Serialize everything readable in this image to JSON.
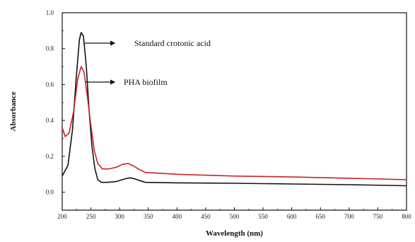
{
  "chart_data": {
    "type": "line",
    "xlabel": "Wavelength (nm)",
    "ylabel": "Absorbance",
    "xlim": [
      200,
      800
    ],
    "ylim": [
      -0.1,
      1.0
    ],
    "xticks": [
      "200",
      "250",
      "300",
      "350",
      "400",
      "450",
      "500",
      "550",
      "600",
      "650",
      "700",
      "750",
      "800"
    ],
    "yticks": [
      "0.0",
      "0.2",
      "0.4",
      "0.6",
      "0.8",
      "1.0"
    ],
    "grid": false,
    "legend": "none",
    "series": [
      {
        "name": "Standard crotonic acid",
        "color": "#111111",
        "points": [
          [
            200,
            0.09
          ],
          [
            210,
            0.15
          ],
          [
            218,
            0.35
          ],
          [
            224,
            0.62
          ],
          [
            230,
            0.85
          ],
          [
            233,
            0.89
          ],
          [
            237,
            0.87
          ],
          [
            242,
            0.7
          ],
          [
            247,
            0.45
          ],
          [
            252,
            0.25
          ],
          [
            257,
            0.13
          ],
          [
            262,
            0.07
          ],
          [
            268,
            0.055
          ],
          [
            280,
            0.055
          ],
          [
            295,
            0.06
          ],
          [
            310,
            0.075
          ],
          [
            318,
            0.08
          ],
          [
            326,
            0.075
          ],
          [
            335,
            0.065
          ],
          [
            345,
            0.055
          ],
          [
            400,
            0.052
          ],
          [
            500,
            0.05
          ],
          [
            600,
            0.046
          ],
          [
            700,
            0.042
          ],
          [
            800,
            0.036
          ]
        ]
      },
      {
        "name": "PHA biofilm",
        "color": "#cc2222",
        "points": [
          [
            200,
            0.36
          ],
          [
            205,
            0.31
          ],
          [
            212,
            0.33
          ],
          [
            220,
            0.45
          ],
          [
            227,
            0.63
          ],
          [
            233,
            0.7
          ],
          [
            238,
            0.67
          ],
          [
            244,
            0.53
          ],
          [
            250,
            0.37
          ],
          [
            256,
            0.23
          ],
          [
            262,
            0.16
          ],
          [
            270,
            0.13
          ],
          [
            282,
            0.13
          ],
          [
            295,
            0.14
          ],
          [
            305,
            0.155
          ],
          [
            315,
            0.16
          ],
          [
            325,
            0.145
          ],
          [
            335,
            0.125
          ],
          [
            345,
            0.11
          ],
          [
            400,
            0.1
          ],
          [
            500,
            0.09
          ],
          [
            600,
            0.085
          ],
          [
            700,
            0.078
          ],
          [
            800,
            0.07
          ]
        ]
      }
    ],
    "annotations": [
      {
        "text": "Standard crotonic acid",
        "series": 0,
        "x": 233,
        "y": 0.89
      },
      {
        "text": "PHA biofilm",
        "series": 1,
        "x": 233,
        "y": 0.7
      }
    ]
  }
}
